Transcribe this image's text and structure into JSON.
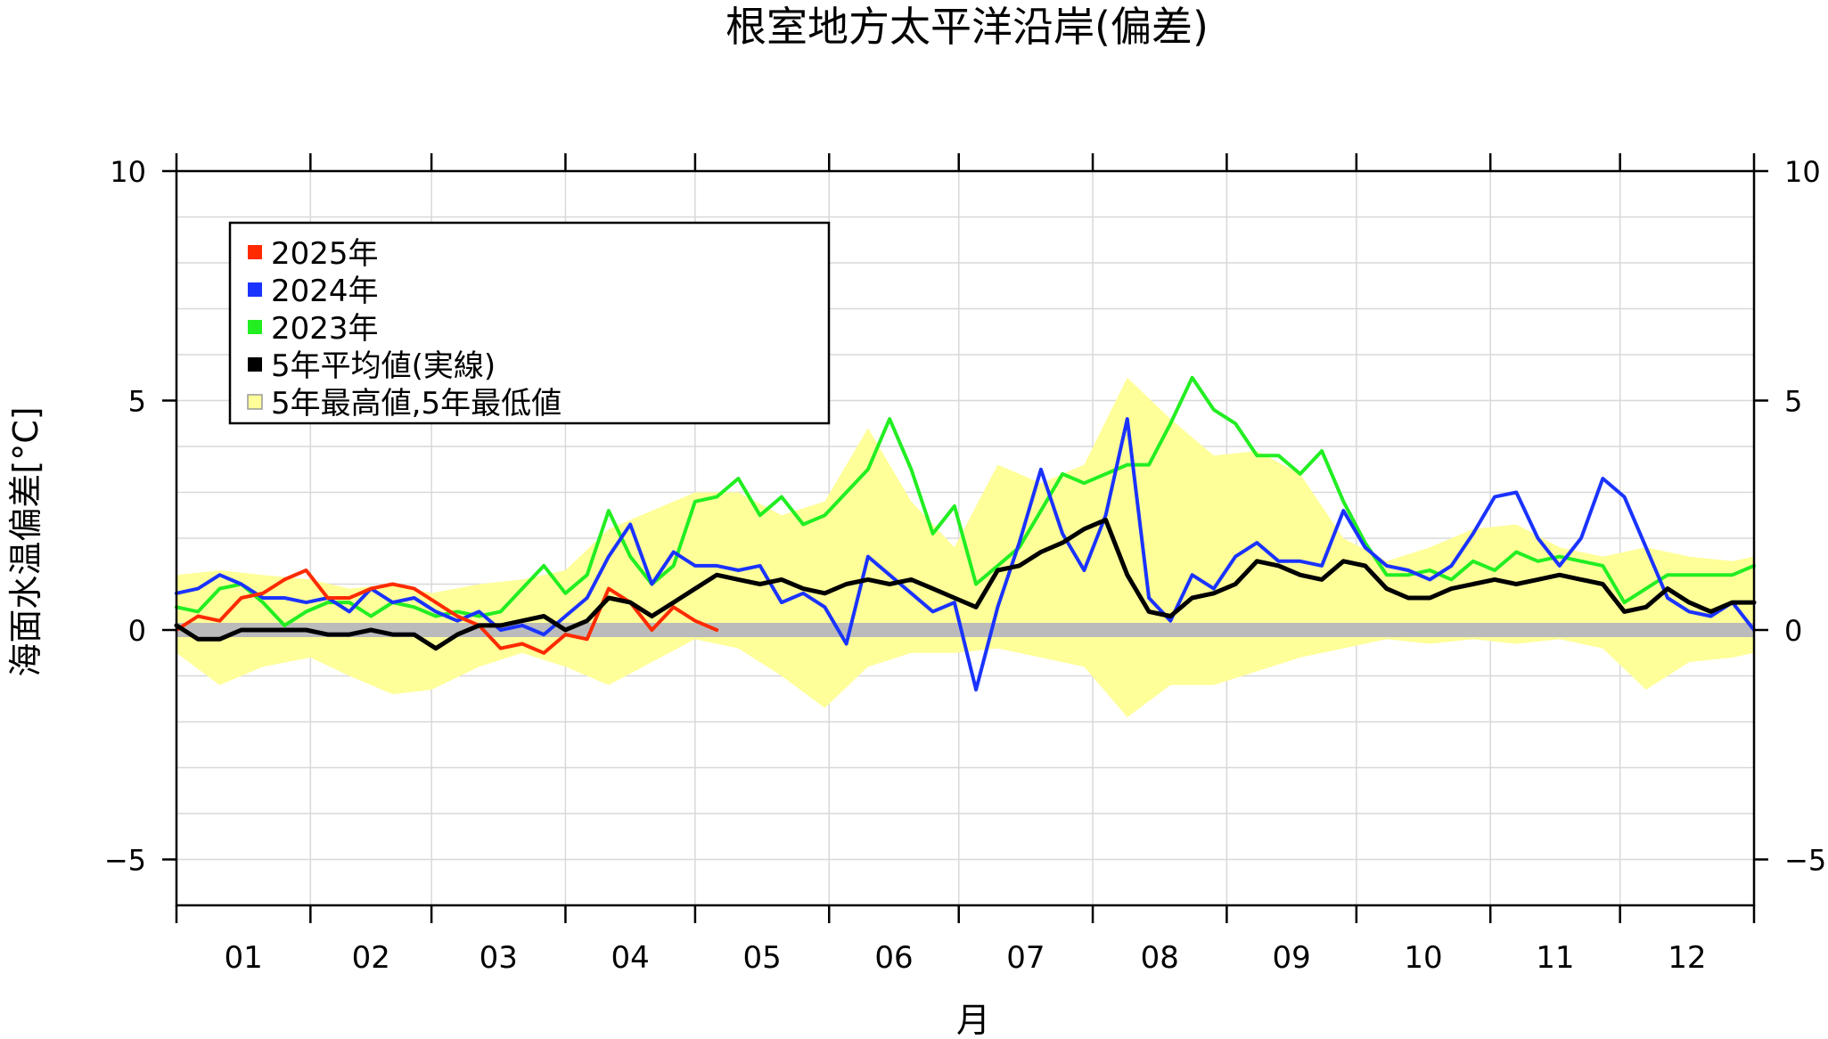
{
  "chart_data": {
    "type": "line",
    "title": "根室地方太平洋沿岸(偏差)",
    "xlabel": "月",
    "ylabel": "海面水温偏差[°C]",
    "xlim": [
      0,
      365
    ],
    "ylim": [
      -6,
      10
    ],
    "yticks": [
      10,
      5,
      0,
      -5
    ],
    "y_tick_labels": [
      "10",
      "5",
      "0",
      "−5"
    ],
    "month_labels": [
      "01",
      "02",
      "03",
      "04",
      "05",
      "06",
      "07",
      "08",
      "09",
      "10",
      "11",
      "12"
    ],
    "month_starts": [
      0,
      31,
      59,
      90,
      120,
      151,
      181,
      212,
      243,
      273,
      304,
      334,
      365
    ],
    "grid": true,
    "legend_position": "top-left",
    "zero_line_color": "#bbbbbb",
    "band": {
      "name": "5年最高値,5年最低値",
      "color": "#ffff99",
      "x": [
        0,
        10,
        20,
        31,
        40,
        50,
        59,
        70,
        80,
        90,
        100,
        110,
        120,
        130,
        140,
        150,
        160,
        170,
        180,
        190,
        200,
        210,
        220,
        230,
        240,
        250,
        260,
        270,
        280,
        290,
        300,
        310,
        320,
        330,
        340,
        350,
        360,
        365
      ],
      "upper": [
        1.2,
        1.3,
        1.2,
        1.1,
        0.9,
        1.0,
        0.8,
        1.0,
        1.1,
        1.3,
        2.2,
        2.6,
        3.0,
        3.0,
        2.5,
        2.8,
        4.4,
        2.8,
        1.8,
        3.6,
        3.2,
        3.6,
        5.5,
        4.6,
        3.8,
        3.9,
        3.4,
        2.0,
        1.5,
        1.8,
        2.2,
        2.3,
        1.8,
        1.6,
        1.8,
        1.6,
        1.5,
        1.6
      ],
      "lower": [
        -0.5,
        -1.2,
        -0.8,
        -0.6,
        -1.0,
        -1.4,
        -1.3,
        -0.8,
        -0.5,
        -0.8,
        -1.2,
        -0.7,
        -0.2,
        -0.4,
        -1.0,
        -1.7,
        -0.8,
        -0.5,
        -0.5,
        -0.4,
        -0.6,
        -0.8,
        -1.9,
        -1.2,
        -1.2,
        -0.9,
        -0.6,
        -0.4,
        -0.2,
        -0.3,
        -0.2,
        -0.3,
        -0.2,
        -0.4,
        -1.3,
        -0.7,
        -0.6,
        -0.5
      ]
    },
    "series": [
      {
        "name": "2025年",
        "color": "#ff2a00",
        "x": [
          0,
          5,
          10,
          15,
          20,
          25,
          30,
          35,
          40,
          45,
          50,
          55,
          60,
          65,
          70,
          75,
          80,
          85,
          90,
          95,
          100,
          105,
          110,
          115,
          120,
          125
        ],
        "values": [
          0.0,
          0.3,
          0.2,
          0.7,
          0.8,
          1.1,
          1.3,
          0.7,
          0.7,
          0.9,
          1.0,
          0.9,
          0.6,
          0.3,
          0.1,
          -0.4,
          -0.3,
          -0.5,
          -0.1,
          -0.2,
          0.9,
          0.6,
          0.0,
          0.5,
          0.2,
          0.0
        ]
      },
      {
        "name": "2024年",
        "color": "#1a33ff",
        "x": [
          0,
          5,
          10,
          15,
          20,
          25,
          30,
          35,
          40,
          45,
          50,
          55,
          60,
          65,
          70,
          75,
          80,
          85,
          90,
          95,
          100,
          105,
          110,
          115,
          120,
          125,
          130,
          135,
          140,
          145,
          150,
          155,
          160,
          165,
          170,
          175,
          180,
          185,
          190,
          195,
          200,
          205,
          210,
          215,
          220,
          225,
          230,
          235,
          240,
          245,
          250,
          255,
          260,
          265,
          270,
          275,
          280,
          285,
          290,
          295,
          300,
          305,
          310,
          315,
          320,
          325,
          330,
          335,
          340,
          345,
          350,
          355,
          360,
          365
        ],
        "values": [
          0.8,
          0.9,
          1.2,
          1.0,
          0.7,
          0.7,
          0.6,
          0.7,
          0.4,
          0.9,
          0.6,
          0.7,
          0.4,
          0.2,
          0.4,
          0.0,
          0.1,
          -0.1,
          0.3,
          0.7,
          1.6,
          2.3,
          1.0,
          1.7,
          1.4,
          1.4,
          1.3,
          1.4,
          0.6,
          0.8,
          0.5,
          -0.3,
          1.6,
          1.2,
          0.8,
          0.4,
          0.6,
          -1.3,
          0.5,
          1.9,
          3.5,
          2.1,
          1.3,
          2.5,
          4.6,
          0.7,
          0.2,
          1.2,
          0.9,
          1.6,
          1.9,
          1.5,
          1.5,
          1.4,
          2.6,
          1.8,
          1.4,
          1.3,
          1.1,
          1.4,
          2.1,
          2.9,
          3.0,
          2.0,
          1.4,
          2.0,
          3.3,
          2.9,
          1.8,
          0.7,
          0.4,
          0.3,
          0.6,
          0.0
        ]
      },
      {
        "name": "2023年",
        "color": "#22ee22",
        "x": [
          0,
          5,
          10,
          15,
          20,
          25,
          30,
          35,
          40,
          45,
          50,
          55,
          60,
          65,
          70,
          75,
          80,
          85,
          90,
          95,
          100,
          105,
          110,
          115,
          120,
          125,
          130,
          135,
          140,
          145,
          150,
          155,
          160,
          165,
          170,
          175,
          180,
          185,
          190,
          195,
          200,
          205,
          210,
          215,
          220,
          225,
          230,
          235,
          240,
          245,
          250,
          255,
          260,
          265,
          270,
          275,
          280,
          285,
          290,
          295,
          300,
          305,
          310,
          315,
          320,
          325,
          330,
          335,
          340,
          345,
          350,
          355,
          360,
          365
        ],
        "values": [
          0.5,
          0.4,
          0.9,
          1.0,
          0.6,
          0.1,
          0.4,
          0.6,
          0.6,
          0.3,
          0.6,
          0.5,
          0.3,
          0.4,
          0.3,
          0.4,
          0.9,
          1.4,
          0.8,
          1.2,
          2.6,
          1.6,
          1.0,
          1.4,
          2.8,
          2.9,
          3.3,
          2.5,
          2.9,
          2.3,
          2.5,
          3.0,
          3.5,
          4.6,
          3.5,
          2.1,
          2.7,
          1.0,
          1.4,
          1.8,
          2.6,
          3.4,
          3.2,
          3.4,
          3.6,
          3.6,
          4.5,
          5.5,
          4.8,
          4.5,
          3.8,
          3.8,
          3.4,
          3.9,
          2.8,
          1.9,
          1.2,
          1.2,
          1.3,
          1.1,
          1.5,
          1.3,
          1.7,
          1.5,
          1.6,
          1.5,
          1.4,
          0.6,
          0.9,
          1.2,
          1.2,
          1.2,
          1.2,
          1.4
        ]
      },
      {
        "name": "5年平均値(実線)",
        "color": "#000000",
        "x": [
          0,
          5,
          10,
          15,
          20,
          25,
          30,
          35,
          40,
          45,
          50,
          55,
          60,
          65,
          70,
          75,
          80,
          85,
          90,
          95,
          100,
          105,
          110,
          115,
          120,
          125,
          130,
          135,
          140,
          145,
          150,
          155,
          160,
          165,
          170,
          175,
          180,
          185,
          190,
          195,
          200,
          205,
          210,
          215,
          220,
          225,
          230,
          235,
          240,
          245,
          250,
          255,
          260,
          265,
          270,
          275,
          280,
          285,
          290,
          295,
          300,
          305,
          310,
          315,
          320,
          325,
          330,
          335,
          340,
          345,
          350,
          355,
          360,
          365
        ],
        "values": [
          0.1,
          -0.2,
          -0.2,
          0.0,
          0.0,
          0.0,
          0.0,
          -0.1,
          -0.1,
          0.0,
          -0.1,
          -0.1,
          -0.4,
          -0.1,
          0.1,
          0.1,
          0.2,
          0.3,
          0.0,
          0.2,
          0.7,
          0.6,
          0.3,
          0.6,
          0.9,
          1.2,
          1.1,
          1.0,
          1.1,
          0.9,
          0.8,
          1.0,
          1.1,
          1.0,
          1.1,
          0.9,
          0.7,
          0.5,
          1.3,
          1.4,
          1.7,
          1.9,
          2.2,
          2.4,
          1.2,
          0.4,
          0.3,
          0.7,
          0.8,
          1.0,
          1.5,
          1.4,
          1.2,
          1.1,
          1.5,
          1.4,
          0.9,
          0.7,
          0.7,
          0.9,
          1.0,
          1.1,
          1.0,
          1.1,
          1.2,
          1.1,
          1.0,
          0.4,
          0.5,
          0.9,
          0.6,
          0.4,
          0.6,
          0.6
        ]
      }
    ]
  }
}
